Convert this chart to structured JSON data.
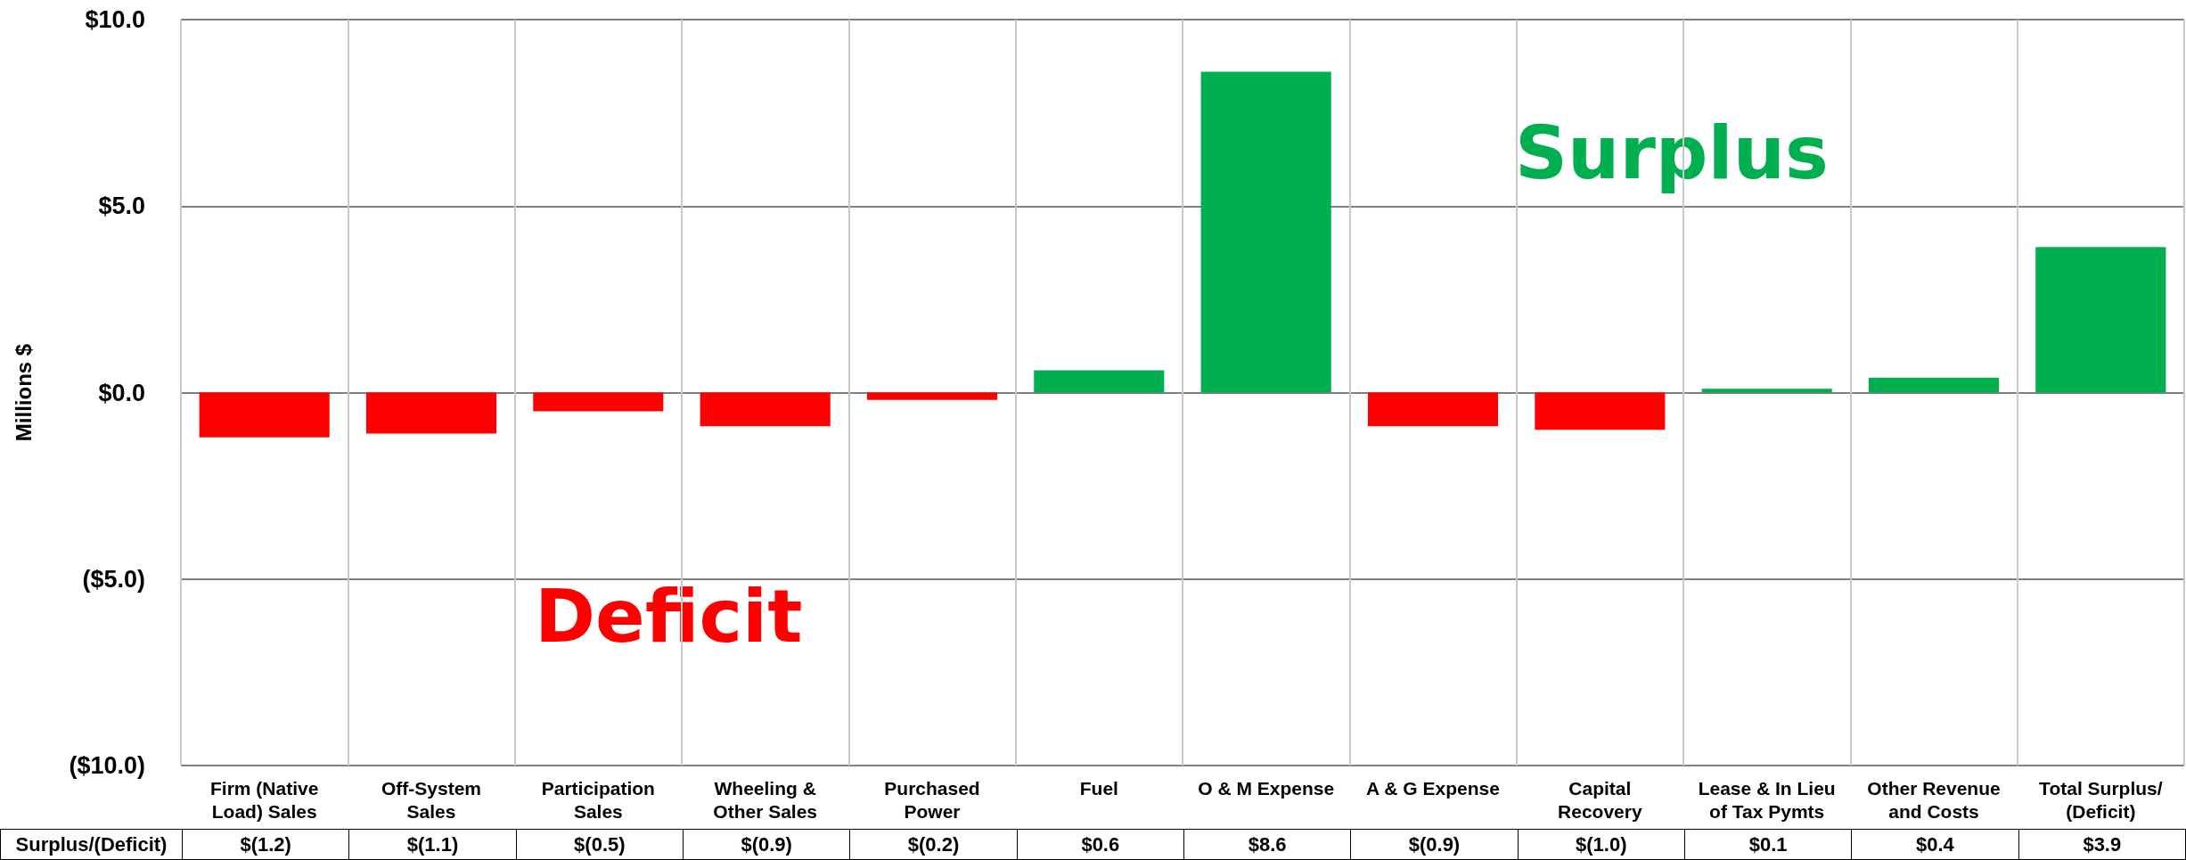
{
  "chart_data": {
    "type": "bar",
    "ylabel": "Millions $",
    "categories": [
      "Firm (Native\nLoad) Sales",
      "Off-System\nSales",
      "Participation\nSales",
      "Wheeling &\nOther Sales",
      "Purchased\nPower",
      "Fuel",
      "O & M Expense",
      "A & G Expense",
      "Capital\nRecovery",
      "Lease & In Lieu\nof Tax Pymts",
      "Other Revenue\nand Costs",
      "Total Surplus/\n(Deficit)"
    ],
    "series": [
      {
        "name": "Surplus/(Deficit)",
        "values": [
          -1.2,
          -1.1,
          -0.5,
          -0.9,
          -0.2,
          0.6,
          8.6,
          -0.9,
          -1.0,
          0.1,
          0.4,
          3.9
        ],
        "colors": [
          "#ff0000",
          "#ff0000",
          "#ff0000",
          "#ff0000",
          "#ff0000",
          "#00b050",
          "#00b050",
          "#ff0000",
          "#ff0000",
          "#00b050",
          "#00b050",
          "#00b050"
        ],
        "value_labels": [
          "$(1.2)",
          "$(1.1)",
          "$(0.5)",
          "$(0.9)",
          "$(0.2)",
          "$0.6",
          "$8.6",
          "$(0.9)",
          "$(1.0)",
          "$0.1",
          "$0.4",
          "$3.9"
        ]
      }
    ],
    "ylim": [
      -10,
      10
    ],
    "yticks": [
      {
        "value": -10,
        "label": "($10.0)"
      },
      {
        "value": -5,
        "label": "($5.0)"
      },
      {
        "value": 0,
        "label": "$0.0"
      },
      {
        "value": 5,
        "label": "$5.0"
      },
      {
        "value": 10,
        "label": "$10.0"
      }
    ],
    "annotations": [
      "Surplus",
      "Deficit"
    ],
    "grid": true,
    "legend": false
  }
}
